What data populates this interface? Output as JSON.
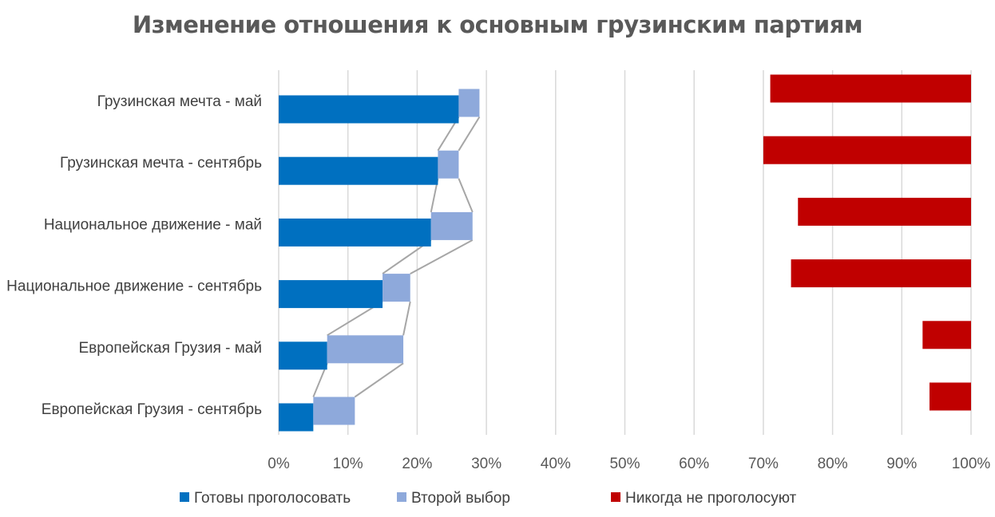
{
  "chart_data": {
    "type": "bar",
    "orientation": "horizontal",
    "stacked": true,
    "title": "Изменение отношения к основным грузинским партиям",
    "categories": [
      "Грузинская мечта - май",
      "Грузинская мечта - сентябрь",
      "Национальное движение - май",
      "Национальное движение - сентябрь",
      "Европейская Грузия - май",
      "Европейская Грузия - сентябрь"
    ],
    "series": [
      {
        "name": "Готовы проголосовать",
        "color": "#0070C0",
        "values": [
          26,
          23,
          22,
          15,
          7,
          5
        ]
      },
      {
        "name": "Второй выбор",
        "color": "#8EA9DB",
        "values": [
          3,
          3,
          6,
          4,
          11,
          6
        ]
      },
      {
        "name": "Никогда не проголосуют",
        "color": "#C00000",
        "values": [
          29,
          30,
          25,
          26,
          7,
          6
        ],
        "anchored": "right"
      }
    ],
    "xlim": [
      0,
      100
    ],
    "xticks": [
      "0%",
      "10%",
      "20%",
      "30%",
      "40%",
      "50%",
      "60%",
      "70%",
      "80%",
      "90%",
      "100%"
    ],
    "grid": true,
    "series_lines": true,
    "legend": "bottom"
  }
}
